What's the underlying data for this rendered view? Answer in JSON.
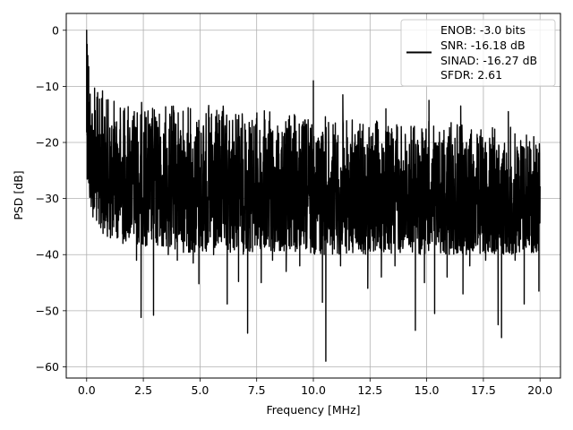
{
  "chart_data": {
    "type": "line",
    "xlabel": "Frequency [MHz]",
    "ylabel": "PSD [dB]",
    "xlim": [
      -0.9,
      20.9
    ],
    "ylim": [
      -62,
      3
    ],
    "xticks": [
      0.0,
      2.5,
      5.0,
      7.5,
      10.0,
      12.5,
      15.0,
      17.5,
      20.0
    ],
    "xtick_labels": [
      "0.0",
      "2.5",
      "5.0",
      "7.5",
      "10.0",
      "12.5",
      "15.0",
      "17.5",
      "20.0"
    ],
    "yticks": [
      0,
      -10,
      -20,
      -30,
      -40,
      -50,
      -60
    ],
    "ytick_labels": [
      "0",
      "−10",
      "−20",
      "−30",
      "−40",
      "−50",
      "−60"
    ],
    "grid": true,
    "legend": {
      "placement": "top-right",
      "lines": [
        "ENOB: -3.0 bits",
        "SNR: -16.18 dB",
        "SINAD: -16.27 dB",
        "SFDR: 2.61"
      ]
    },
    "series": [
      {
        "color": "#000000",
        "x_range": [
          0,
          20
        ],
        "envelope": {
          "x": [
            0,
            0.1,
            0.3,
            0.6,
            1.0,
            2.0,
            3.0,
            5.0,
            7.5,
            10.0,
            12.5,
            15.0,
            17.5,
            20.0
          ],
          "upper": [
            0,
            -5,
            -10,
            -11,
            -12,
            -12,
            -13,
            -13,
            -14,
            -15,
            -16,
            -16,
            -17,
            -17
          ],
          "lower": [
            -25,
            -32,
            -34,
            -36,
            -37,
            -38,
            -39,
            -40,
            -40,
            -40,
            -40,
            -40,
            -40,
            -40
          ]
        },
        "peaks": [
          {
            "x": 0.0,
            "y": 0.0
          },
          {
            "x": 0.02,
            "y": -2.5
          },
          {
            "x": 0.05,
            "y": -4.5
          },
          {
            "x": 0.09,
            "y": -6.5
          },
          {
            "x": 0.35,
            "y": -10.3
          },
          {
            "x": 0.7,
            "y": -10.8
          },
          {
            "x": 10.0,
            "y": -9.0
          },
          {
            "x": 11.3,
            "y": -11.5
          },
          {
            "x": 13.2,
            "y": -14.0
          },
          {
            "x": 15.1,
            "y": -12.5
          },
          {
            "x": 16.5,
            "y": -13.5
          },
          {
            "x": 18.6,
            "y": -14.5
          }
        ],
        "dips": [
          {
            "x": 0.55,
            "y": -34.5
          },
          {
            "x": 0.75,
            "y": -33.0
          },
          {
            "x": 1.05,
            "y": -37.0
          },
          {
            "x": 1.6,
            "y": -38.0
          },
          {
            "x": 2.2,
            "y": -41.0
          },
          {
            "x": 2.4,
            "y": -51.2
          },
          {
            "x": 2.95,
            "y": -50.8
          },
          {
            "x": 3.6,
            "y": -40.0
          },
          {
            "x": 4.0,
            "y": -41.0
          },
          {
            "x": 4.7,
            "y": -41.5
          },
          {
            "x": 4.95,
            "y": -45.2
          },
          {
            "x": 5.6,
            "y": -40.0
          },
          {
            "x": 6.2,
            "y": -48.8
          },
          {
            "x": 6.7,
            "y": -44.8
          },
          {
            "x": 7.1,
            "y": -54.0
          },
          {
            "x": 7.7,
            "y": -45.0
          },
          {
            "x": 8.2,
            "y": -41.0
          },
          {
            "x": 8.8,
            "y": -43.0
          },
          {
            "x": 9.4,
            "y": -42.0
          },
          {
            "x": 10.4,
            "y": -48.5
          },
          {
            "x": 10.55,
            "y": -59.0
          },
          {
            "x": 11.2,
            "y": -42.0
          },
          {
            "x": 12.0,
            "y": -39.0
          },
          {
            "x": 12.4,
            "y": -46.0
          },
          {
            "x": 13.0,
            "y": -44.0
          },
          {
            "x": 13.6,
            "y": -42.0
          },
          {
            "x": 14.5,
            "y": -53.5
          },
          {
            "x": 14.9,
            "y": -45.0
          },
          {
            "x": 15.35,
            "y": -50.5
          },
          {
            "x": 15.9,
            "y": -44.0
          },
          {
            "x": 16.6,
            "y": -47.0
          },
          {
            "x": 16.9,
            "y": -42.0
          },
          {
            "x": 17.6,
            "y": -41.0
          },
          {
            "x": 18.15,
            "y": -52.5
          },
          {
            "x": 18.3,
            "y": -54.8
          },
          {
            "x": 18.9,
            "y": -41.0
          },
          {
            "x": 19.3,
            "y": -48.8
          },
          {
            "x": 19.95,
            "y": -46.5
          }
        ]
      }
    ]
  }
}
